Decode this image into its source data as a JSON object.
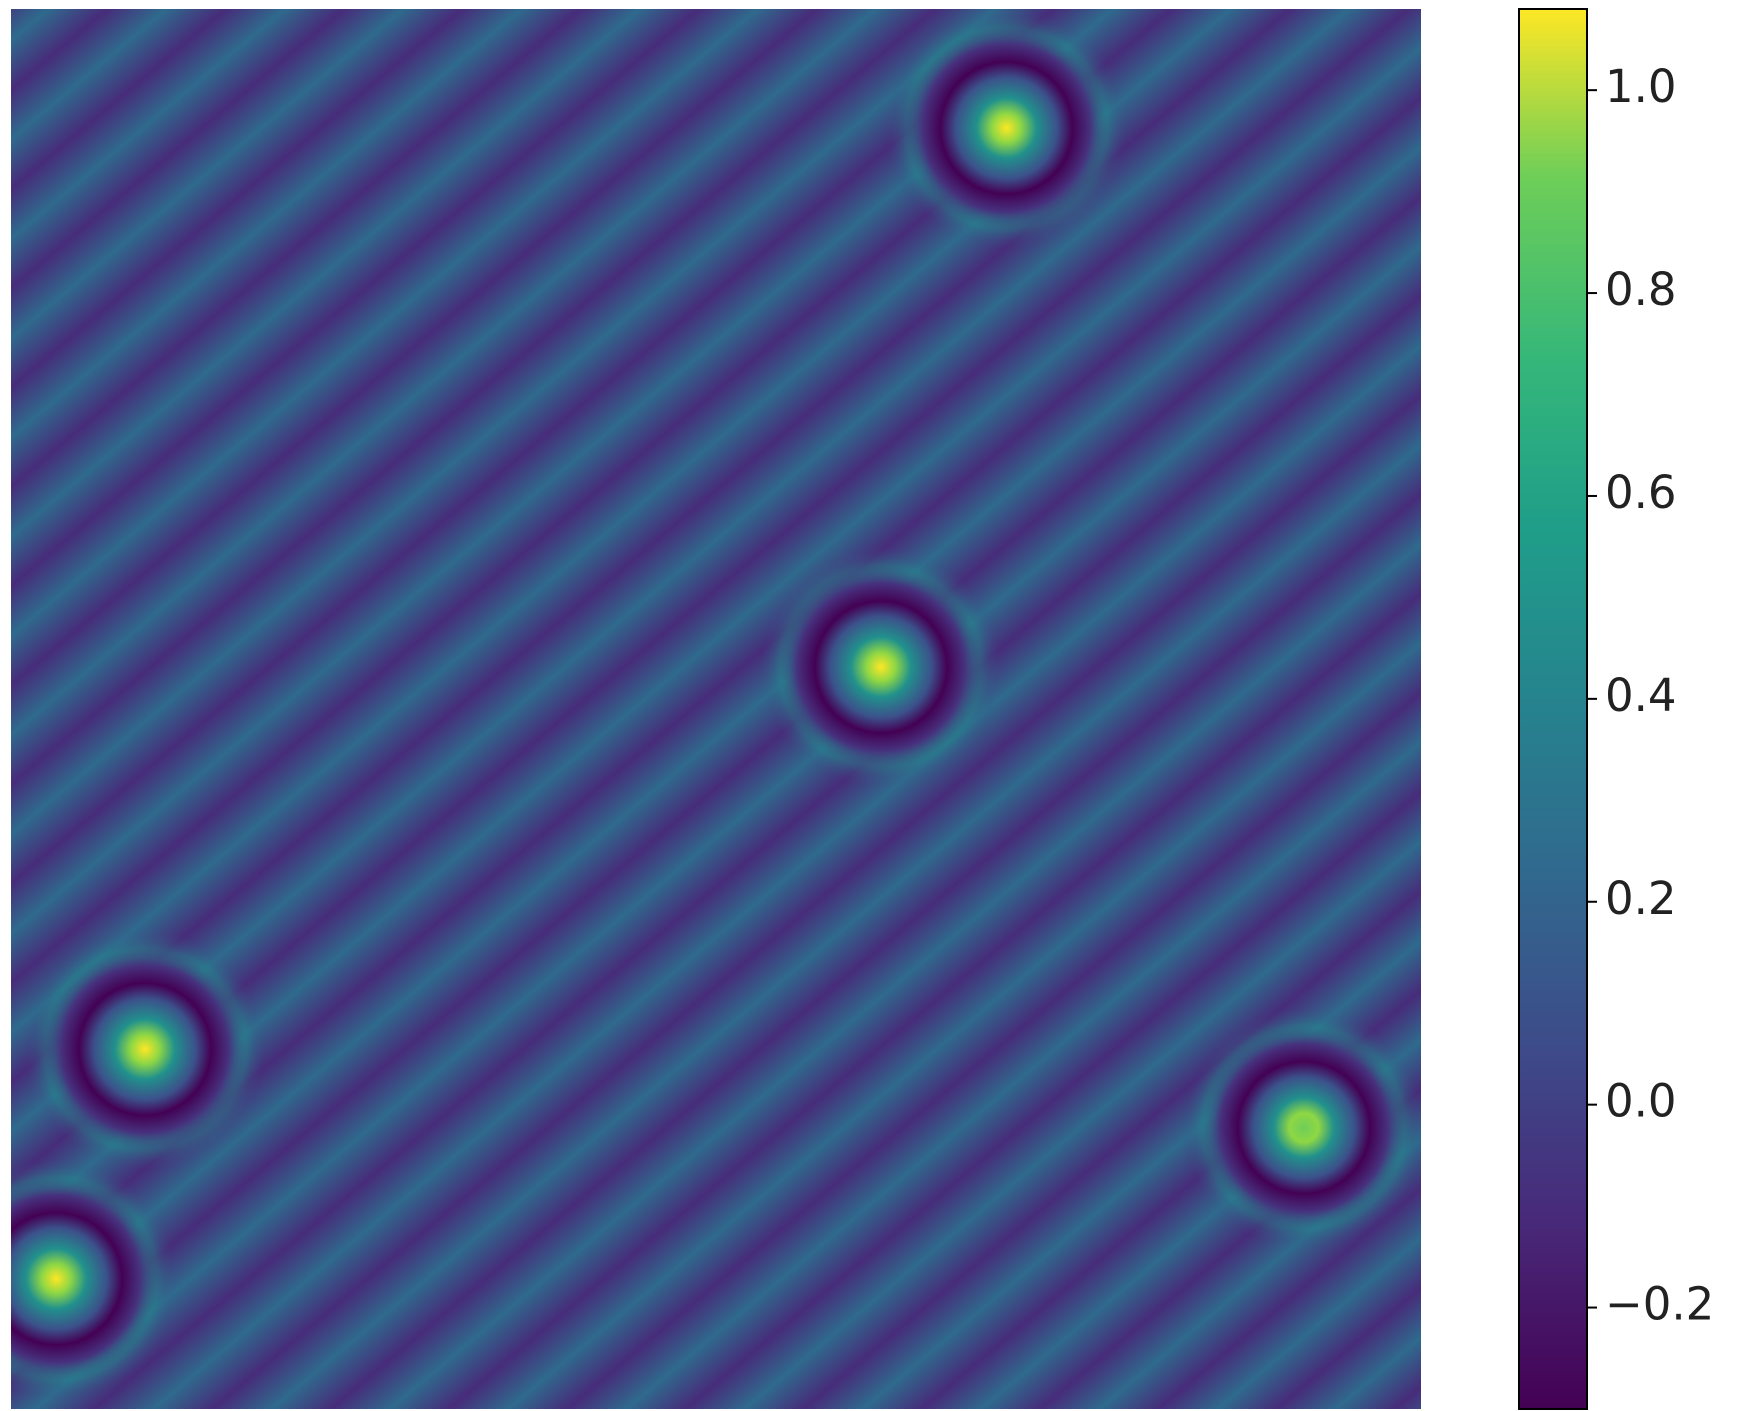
{
  "chart_data": {
    "type": "heatmap",
    "peaks": {
      "x": [
        0.706,
        0.617,
        0.095,
        0.917,
        0.032
      ],
      "y": [
        0.085,
        0.47,
        0.743,
        0.799,
        0.907
      ],
      "values": [
        1.05,
        1.0,
        1.0,
        0.98,
        1.03
      ]
    },
    "colorbar": {
      "clim": [
        -0.3,
        1.08
      ],
      "cmap": "viridis",
      "ticks": [
        {
          "value": -0.2,
          "label": "−0.2"
        },
        {
          "value": 0,
          "label": "0.0"
        },
        0.2,
        0.4,
        0.6,
        0.8,
        {
          "value": 1.0,
          "label": "1.0"
        }
      ]
    }
  }
}
